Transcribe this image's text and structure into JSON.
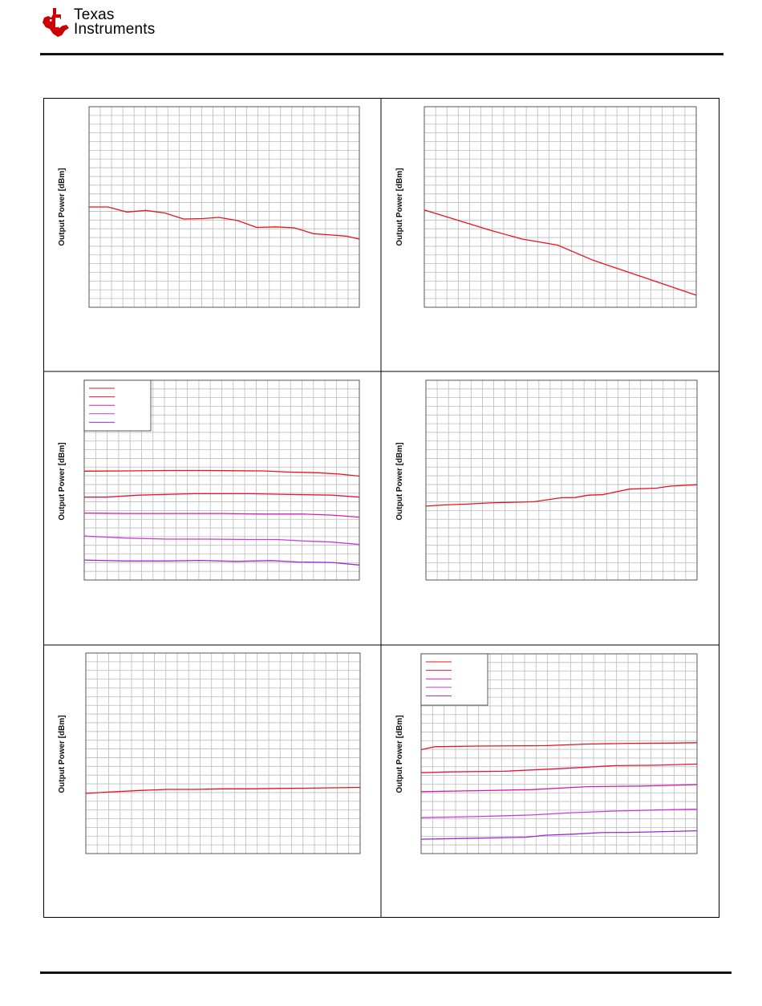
{
  "brand": {
    "name_line1": "Texas",
    "name_line2": "Instruments",
    "logo_color": "#cc0000"
  },
  "colors": {
    "series": [
      "#e8141c",
      "#e8143c",
      "#d81ca8",
      "#c83cd8",
      "#9a28d8"
    ],
    "grid": "#bbbbbb"
  },
  "chart_data": [
    {
      "type": "line",
      "ylabel": "Output Power [dBm]",
      "grid": true,
      "xlim": [
        0,
        1
      ],
      "ylim": [
        0,
        1
      ],
      "series": [
        {
          "values": [
            [
              0,
              0.5
            ],
            [
              0.07,
              0.5
            ],
            [
              0.14,
              0.475
            ],
            [
              0.21,
              0.483
            ],
            [
              0.28,
              0.47
            ],
            [
              0.35,
              0.44
            ],
            [
              0.42,
              0.442
            ],
            [
              0.48,
              0.448
            ],
            [
              0.55,
              0.432
            ],
            [
              0.62,
              0.398
            ],
            [
              0.69,
              0.401
            ],
            [
              0.76,
              0.396
            ],
            [
              0.83,
              0.367
            ],
            [
              0.9,
              0.36
            ],
            [
              0.95,
              0.355
            ],
            [
              1.0,
              0.34
            ]
          ]
        }
      ]
    },
    {
      "type": "line",
      "ylabel": "Output Power [dBm]",
      "grid": true,
      "xlim": [
        0,
        1
      ],
      "ylim": [
        0,
        1
      ],
      "series": [
        {
          "values": [
            [
              0,
              0.485
            ],
            [
              0.12,
              0.435
            ],
            [
              0.24,
              0.385
            ],
            [
              0.36,
              0.34
            ],
            [
              0.49,
              0.31
            ],
            [
              0.62,
              0.235
            ],
            [
              0.75,
              0.175
            ],
            [
              0.87,
              0.12
            ],
            [
              1.0,
              0.06
            ]
          ]
        }
      ]
    },
    {
      "type": "line",
      "ylabel": "Output Power [dBm]",
      "grid": true,
      "legend": "top-left",
      "legend_entries": 5,
      "xlim": [
        0,
        1
      ],
      "ylim": [
        0,
        1
      ],
      "series": [
        {
          "values": [
            [
              0,
              0.545
            ],
            [
              0.15,
              0.546
            ],
            [
              0.3,
              0.548
            ],
            [
              0.45,
              0.548
            ],
            [
              0.55,
              0.547
            ],
            [
              0.65,
              0.546
            ],
            [
              0.75,
              0.54
            ],
            [
              0.85,
              0.537
            ],
            [
              0.93,
              0.53
            ],
            [
              1.0,
              0.52
            ]
          ]
        },
        {
          "values": [
            [
              0,
              0.415
            ],
            [
              0.08,
              0.415
            ],
            [
              0.2,
              0.425
            ],
            [
              0.4,
              0.432
            ],
            [
              0.6,
              0.432
            ],
            [
              0.75,
              0.428
            ],
            [
              0.9,
              0.425
            ],
            [
              1.0,
              0.415
            ]
          ]
        },
        {
          "values": [
            [
              0,
              0.335
            ],
            [
              0.15,
              0.333
            ],
            [
              0.3,
              0.333
            ],
            [
              0.5,
              0.333
            ],
            [
              0.65,
              0.33
            ],
            [
              0.8,
              0.33
            ],
            [
              0.9,
              0.325
            ],
            [
              1.0,
              0.315
            ]
          ]
        },
        {
          "values": [
            [
              0,
              0.22
            ],
            [
              0.15,
              0.21
            ],
            [
              0.3,
              0.205
            ],
            [
              0.45,
              0.205
            ],
            [
              0.6,
              0.203
            ],
            [
              0.7,
              0.203
            ],
            [
              0.8,
              0.195
            ],
            [
              0.9,
              0.19
            ],
            [
              1.0,
              0.178
            ]
          ]
        },
        {
          "values": [
            [
              0,
              0.1
            ],
            [
              0.15,
              0.095
            ],
            [
              0.3,
              0.095
            ],
            [
              0.42,
              0.098
            ],
            [
              0.55,
              0.093
            ],
            [
              0.68,
              0.097
            ],
            [
              0.78,
              0.09
            ],
            [
              0.9,
              0.088
            ],
            [
              1.0,
              0.075
            ]
          ]
        }
      ]
    },
    {
      "type": "line",
      "ylabel": "Output Power [dBm]",
      "grid": true,
      "xlim": [
        0,
        1
      ],
      "ylim": [
        0,
        1
      ],
      "series": [
        {
          "values": [
            [
              0,
              0.37
            ],
            [
              0.07,
              0.376
            ],
            [
              0.15,
              0.38
            ],
            [
              0.25,
              0.387
            ],
            [
              0.35,
              0.39
            ],
            [
              0.4,
              0.392
            ],
            [
              0.5,
              0.412
            ],
            [
              0.55,
              0.413
            ],
            [
              0.6,
              0.425
            ],
            [
              0.65,
              0.427
            ],
            [
              0.75,
              0.455
            ],
            [
              0.85,
              0.46
            ],
            [
              0.9,
              0.47
            ],
            [
              1.0,
              0.477
            ]
          ]
        }
      ]
    },
    {
      "type": "line",
      "ylabel": "Output Power [dBm]",
      "grid": true,
      "xlim": [
        0,
        1
      ],
      "ylim": [
        0,
        1
      ],
      "series": [
        {
          "values": [
            [
              0,
              0.3
            ],
            [
              0.1,
              0.308
            ],
            [
              0.2,
              0.315
            ],
            [
              0.3,
              0.32
            ],
            [
              0.4,
              0.32
            ],
            [
              0.5,
              0.323
            ],
            [
              0.6,
              0.323
            ],
            [
              0.7,
              0.325
            ],
            [
              0.8,
              0.326
            ],
            [
              0.9,
              0.328
            ],
            [
              1.0,
              0.33
            ]
          ]
        }
      ]
    },
    {
      "type": "line",
      "ylabel": "Output Power [dBm]",
      "grid": true,
      "legend": "top-left",
      "legend_entries": 5,
      "xlim": [
        0,
        1
      ],
      "ylim": [
        0,
        1
      ],
      "series": [
        {
          "values": [
            [
              0,
              0.52
            ],
            [
              0.05,
              0.535
            ],
            [
              0.2,
              0.538
            ],
            [
              0.45,
              0.54
            ],
            [
              0.6,
              0.548
            ],
            [
              0.75,
              0.552
            ],
            [
              0.9,
              0.553
            ],
            [
              1.0,
              0.555
            ]
          ]
        },
        {
          "values": [
            [
              0,
              0.405
            ],
            [
              0.1,
              0.409
            ],
            [
              0.3,
              0.412
            ],
            [
              0.5,
              0.425
            ],
            [
              0.7,
              0.44
            ],
            [
              0.85,
              0.442
            ],
            [
              1.0,
              0.448
            ]
          ]
        },
        {
          "values": [
            [
              0,
              0.31
            ],
            [
              0.2,
              0.315
            ],
            [
              0.4,
              0.32
            ],
            [
              0.6,
              0.335
            ],
            [
              0.8,
              0.338
            ],
            [
              1.0,
              0.345
            ]
          ]
        },
        {
          "values": [
            [
              0,
              0.18
            ],
            [
              0.2,
              0.185
            ],
            [
              0.4,
              0.193
            ],
            [
              0.55,
              0.205
            ],
            [
              0.7,
              0.213
            ],
            [
              0.85,
              0.218
            ],
            [
              1.0,
              0.222
            ]
          ]
        },
        {
          "values": [
            [
              0,
              0.072
            ],
            [
              0.2,
              0.077
            ],
            [
              0.38,
              0.082
            ],
            [
              0.45,
              0.092
            ],
            [
              0.55,
              0.097
            ],
            [
              0.65,
              0.105
            ],
            [
              0.75,
              0.106
            ],
            [
              0.88,
              0.11
            ],
            [
              1.0,
              0.114
            ]
          ]
        }
      ]
    }
  ]
}
